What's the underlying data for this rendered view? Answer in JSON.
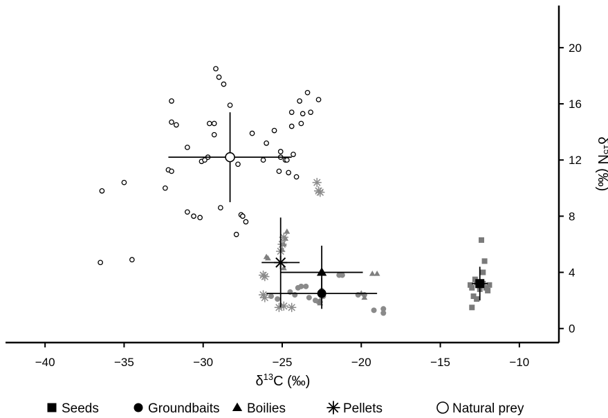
{
  "chart_data": {
    "type": "scatter",
    "xlabel": "δ13C (‰)",
    "ylabel": "δ15N (‰)",
    "xlim": [
      -42.5,
      -7.5
    ],
    "ylim": [
      -1,
      23
    ],
    "x_ticks": [
      -40,
      -35,
      -30,
      -25,
      -20,
      -15,
      -10
    ],
    "y_ticks": [
      0,
      4,
      8,
      12,
      16,
      20
    ],
    "legend_position": "bottom",
    "series": [
      {
        "name": "Seeds",
        "marker": "square",
        "points": [
          [
            -12.4,
            6.3
          ],
          [
            -12.2,
            4.8
          ],
          [
            -12.3,
            4.0
          ],
          [
            -12.8,
            3.5
          ],
          [
            -12.7,
            3.3
          ],
          [
            -12.3,
            3.2
          ],
          [
            -13.1,
            3.1
          ],
          [
            -13.0,
            2.9
          ],
          [
            -12.1,
            2.9
          ],
          [
            -11.9,
            3.1
          ],
          [
            -12.0,
            2.7
          ],
          [
            -12.9,
            2.3
          ],
          [
            -12.7,
            2.1
          ],
          [
            -13.0,
            1.5
          ],
          [
            -12.5,
            2.8
          ]
        ],
        "mean": [
          -12.5,
          3.2
        ],
        "x_err": 0.5,
        "y_err": 1.2
      },
      {
        "name": "Groundbaits",
        "marker": "circle",
        "points": [
          [
            -24.0,
            2.9
          ],
          [
            -23.8,
            3.0
          ],
          [
            -23.5,
            3.0
          ],
          [
            -24.5,
            2.6
          ],
          [
            -24.2,
            2.4
          ],
          [
            -23.3,
            2.2
          ],
          [
            -22.9,
            2.0
          ],
          [
            -22.7,
            1.9
          ],
          [
            -22.4,
            2.3
          ],
          [
            -22.5,
            2.7
          ],
          [
            -21.4,
            3.8
          ],
          [
            -21.2,
            3.8
          ],
          [
            -20.2,
            2.4
          ],
          [
            -19.8,
            2.4
          ],
          [
            -19.2,
            1.3
          ],
          [
            -18.6,
            1.1
          ],
          [
            -18.6,
            1.4
          ],
          [
            -25.7,
            2.3
          ],
          [
            -25.3,
            2.1
          ]
        ],
        "mean": [
          -22.5,
          2.5
        ],
        "x_err": 3.5,
        "y_err": 1.1
      },
      {
        "name": "Boilies",
        "marker": "triangle",
        "points": [
          [
            -24.7,
            6.9
          ],
          [
            -24.8,
            6.4
          ],
          [
            -24.9,
            6.0
          ],
          [
            -25.0,
            5.6
          ],
          [
            -26.0,
            5.1
          ],
          [
            -25.9,
            5.0
          ],
          [
            -24.9,
            4.3
          ],
          [
            -19.3,
            3.9
          ],
          [
            -19.0,
            3.9
          ],
          [
            -20.0,
            2.5
          ],
          [
            -19.8,
            2.2
          ],
          [
            -22.6,
            2.0
          ],
          [
            -22.6,
            1.8
          ]
        ],
        "mean": [
          -22.5,
          4.0
        ],
        "x_err": 2.6,
        "y_err": 1.9
      },
      {
        "name": "Pellets",
        "marker": "asterisk",
        "points": [
          [
            -22.8,
            10.4
          ],
          [
            -22.7,
            9.8
          ],
          [
            -22.6,
            9.7
          ],
          [
            -24.9,
            6.5
          ],
          [
            -25.0,
            6.0
          ],
          [
            -25.1,
            5.5
          ],
          [
            -26.2,
            3.8
          ],
          [
            -26.1,
            3.7
          ],
          [
            -26.2,
            2.4
          ],
          [
            -26.1,
            2.2
          ],
          [
            -25.2,
            1.5
          ],
          [
            -24.9,
            1.6
          ],
          [
            -24.4,
            1.5
          ]
        ],
        "mean": [
          -25.1,
          4.7
        ],
        "x_err": 1.2,
        "y_err": 3.2
      },
      {
        "name": "Natural prey",
        "marker": "open-circle",
        "points": [
          [
            -29.2,
            18.5
          ],
          [
            -29.0,
            17.9
          ],
          [
            -28.7,
            17.4
          ],
          [
            -28.3,
            15.9
          ],
          [
            -32.0,
            16.2
          ],
          [
            -29.6,
            14.6
          ],
          [
            -29.3,
            14.6
          ],
          [
            -32.0,
            14.7
          ],
          [
            -31.7,
            14.5
          ],
          [
            -29.3,
            13.8
          ],
          [
            -26.9,
            13.9
          ],
          [
            -31.0,
            12.9
          ],
          [
            -25.5,
            14.1
          ],
          [
            -26.0,
            13.2
          ],
          [
            -25.1,
            12.6
          ],
          [
            -25.1,
            12.2
          ],
          [
            -24.8,
            12.0
          ],
          [
            -24.7,
            12.0
          ],
          [
            -24.3,
            12.4
          ],
          [
            -23.7,
            15.3
          ],
          [
            -23.2,
            15.4
          ],
          [
            -24.4,
            15.4
          ],
          [
            -24.4,
            14.4
          ],
          [
            -23.9,
            16.2
          ],
          [
            -23.4,
            16.8
          ],
          [
            -22.7,
            16.3
          ],
          [
            -23.8,
            14.6
          ],
          [
            -29.7,
            12.2
          ],
          [
            -30.1,
            11.9
          ],
          [
            -29.9,
            12.0
          ],
          [
            -27.8,
            11.7
          ],
          [
            -26.2,
            12.0
          ],
          [
            -25.2,
            11.2
          ],
          [
            -24.6,
            11.1
          ],
          [
            -24.1,
            10.8
          ],
          [
            -32.2,
            11.3
          ],
          [
            -32.0,
            11.2
          ],
          [
            -32.4,
            10.0
          ],
          [
            -35.0,
            10.4
          ],
          [
            -36.4,
            9.8
          ],
          [
            -31.0,
            8.3
          ],
          [
            -30.6,
            8.0
          ],
          [
            -30.2,
            7.9
          ],
          [
            -28.9,
            8.6
          ],
          [
            -27.6,
            8.1
          ],
          [
            -27.5,
            8.0
          ],
          [
            -27.3,
            7.6
          ],
          [
            -27.9,
            6.7
          ],
          [
            -36.5,
            4.7
          ],
          [
            -34.5,
            4.9
          ]
        ],
        "mean": [
          -28.3,
          12.2
        ],
        "x_err": 3.9,
        "y_err": 3.2
      }
    ]
  }
}
